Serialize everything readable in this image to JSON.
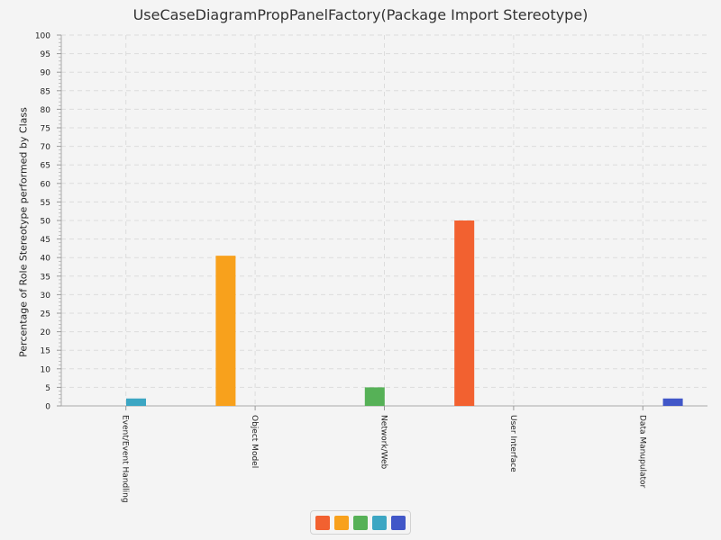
{
  "chart_data": {
    "type": "bar",
    "title": "UseCaseDiagramPropPanelFactory(Package Import Stereotype)",
    "xlabel": "",
    "ylabel": "Percentage of Role Stereotype performed by Class",
    "ylim": [
      0,
      100
    ],
    "yticks": [
      0,
      5,
      10,
      15,
      20,
      25,
      30,
      35,
      40,
      45,
      50,
      55,
      60,
      65,
      70,
      75,
      80,
      85,
      90,
      95,
      100
    ],
    "grid": true,
    "legend_position": "bottom",
    "categories": [
      "Event/Event Handling",
      "Object Model",
      "Network/Web",
      "User Interface",
      "Data Manupulator"
    ],
    "series": [
      {
        "color": "#f26130",
        "values": [
          0,
          0,
          0,
          50,
          0
        ]
      },
      {
        "color": "#f8a11c",
        "values": [
          0,
          40.5,
          0,
          0,
          0
        ]
      },
      {
        "color": "#56b157",
        "values": [
          0,
          0,
          5,
          0,
          0
        ]
      },
      {
        "color": "#3ca6c3",
        "values": [
          2,
          0,
          0,
          0,
          0
        ]
      },
      {
        "color": "#4157c8",
        "values": [
          0,
          0,
          0,
          0,
          2
        ]
      }
    ]
  }
}
